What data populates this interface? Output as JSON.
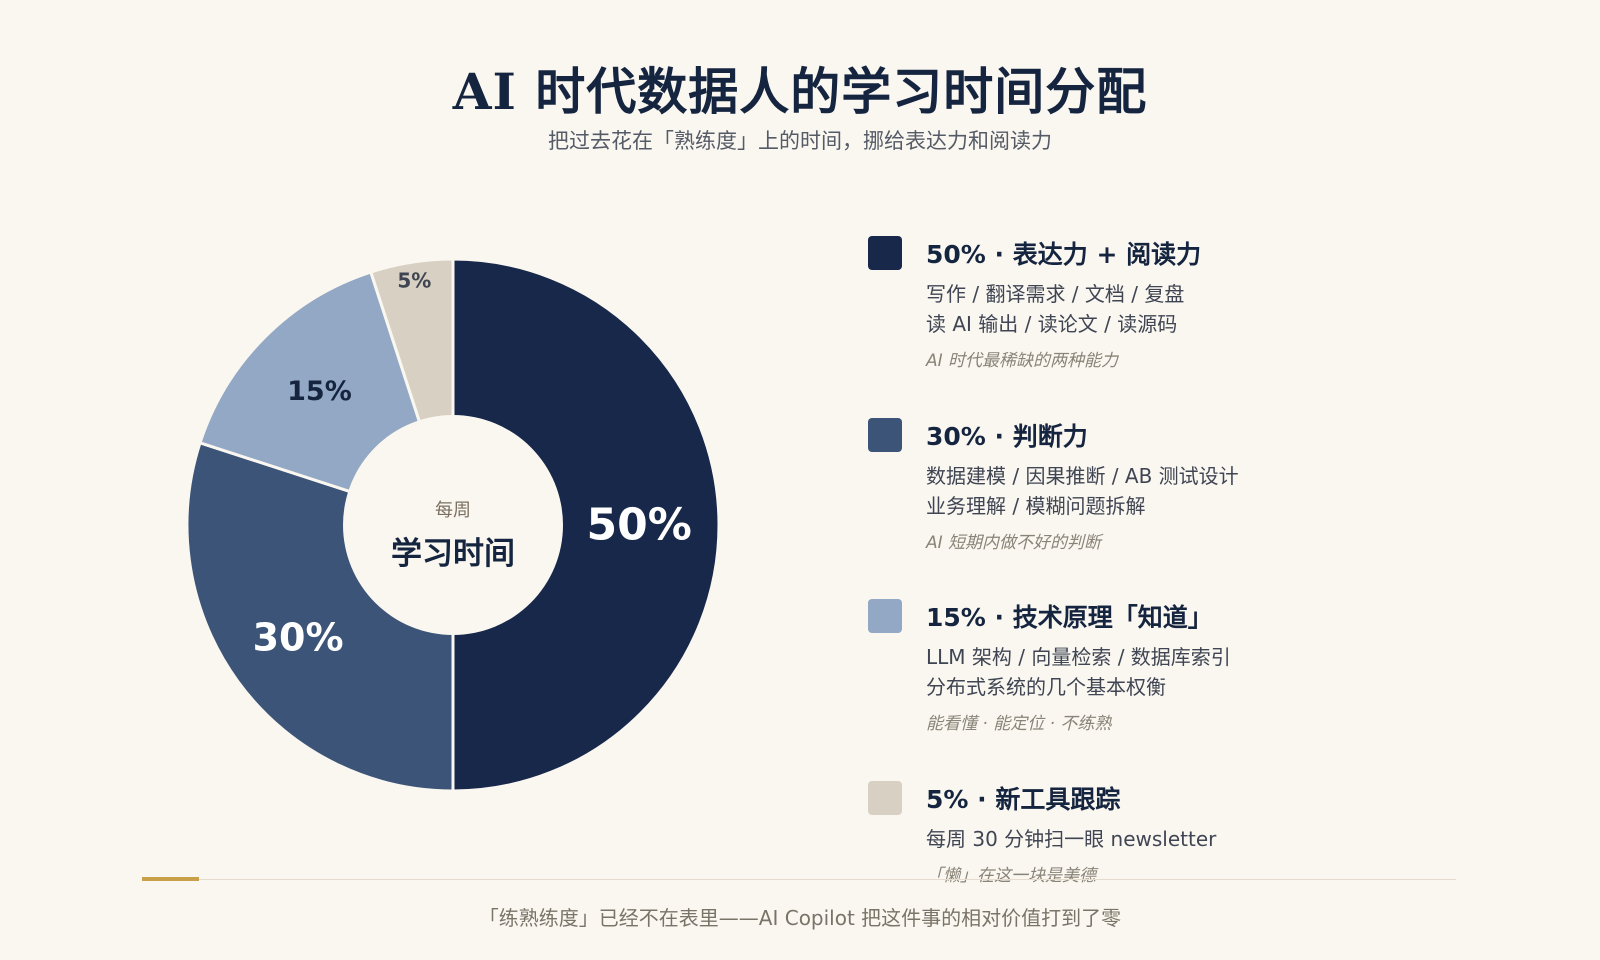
{
  "title": "AI 时代数据人的学习时间分配",
  "subtitle": "把过去花在「熟练度」上的时间，挪给表达力和阅读力",
  "center": {
    "small": "每周",
    "big": "学习时间"
  },
  "chart_data": {
    "type": "pie",
    "donut": true,
    "slices": [
      {
        "label": "50%",
        "value": 50,
        "color": "#17284a"
      },
      {
        "label": "30%",
        "value": 30,
        "color": "#3b5478"
      },
      {
        "label": "15%",
        "value": 15,
        "color": "#92a8c4"
      },
      {
        "label": "5%",
        "value": 5,
        "color": "#d8d0c2"
      }
    ]
  },
  "legend": [
    {
      "title": "50% · 表达力 + 阅读力",
      "color": "#17284a",
      "lines": [
        "写作 / 翻译需求 / 文档 / 复盘",
        "读 AI 输出 / 读论文 / 读源码"
      ],
      "note": "AI 时代最稀缺的两种能力"
    },
    {
      "title": "30% · 判断力",
      "color": "#3b5478",
      "lines": [
        "数据建模 / 因果推断 / AB 测试设计",
        "业务理解 / 模糊问题拆解"
      ],
      "note": "AI 短期内做不好的判断"
    },
    {
      "title": "15% · 技术原理「知道」",
      "color": "#92a8c4",
      "lines": [
        "LLM 架构 / 向量检索 / 数据库索引",
        "分布式系统的几个基本权衡"
      ],
      "note": "能看懂 · 能定位 · 不练熟"
    },
    {
      "title": "5% · 新工具跟踪",
      "color": "#d8d0c2",
      "lines": [
        "每周 30 分钟扫一眼 newsletter"
      ],
      "note": "「懒」在这一块是美德"
    }
  ],
  "footer": "「练熟练度」已经不在表里——AI Copilot 把这件事的相对价值打到了零"
}
